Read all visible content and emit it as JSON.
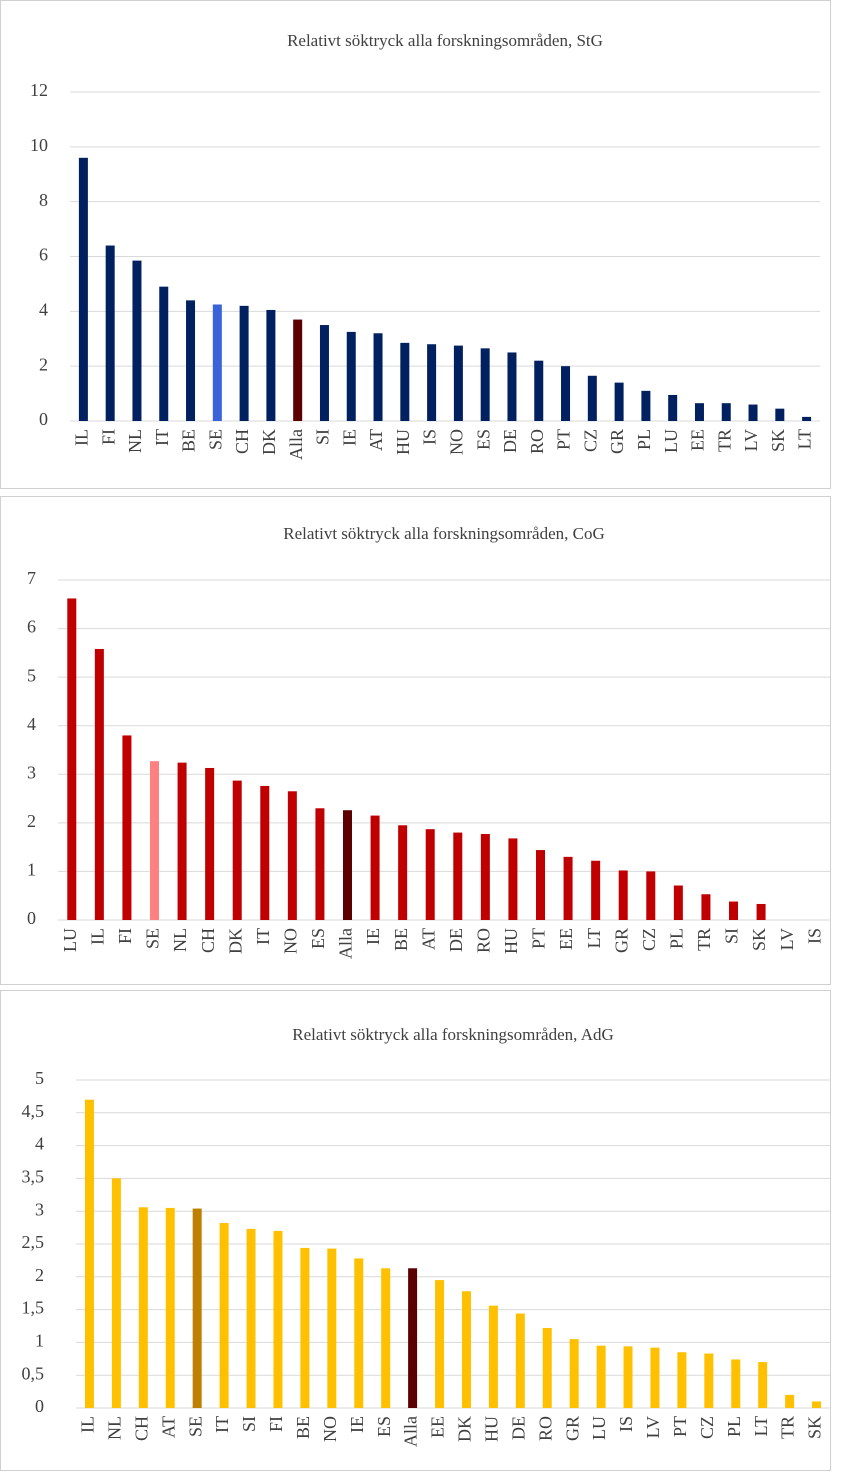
{
  "chart_data": [
    {
      "type": "bar",
      "title": "Relativt söktryck alla forskningsområden, StG",
      "categories": [
        "IL",
        "FI",
        "NL",
        "IT",
        "BE",
        "SE",
        "CH",
        "DK",
        "Alla",
        "SI",
        "IE",
        "AT",
        "HU",
        "IS",
        "NO",
        "ES",
        "DE",
        "RO",
        "PT",
        "CZ",
        "GR",
        "PL",
        "LU",
        "EE",
        "TR",
        "LV",
        "SK",
        "LT"
      ],
      "values": [
        9.6,
        6.4,
        5.85,
        4.9,
        4.4,
        4.25,
        4.2,
        4.05,
        3.7,
        3.5,
        3.25,
        3.2,
        2.85,
        2.8,
        2.75,
        2.65,
        2.5,
        2.2,
        2.0,
        1.65,
        1.4,
        1.1,
        0.95,
        0.65,
        0.65,
        0.6,
        0.45,
        0.15
      ],
      "colors": [
        "#002060",
        "#002060",
        "#002060",
        "#002060",
        "#002060",
        "#3a62d9",
        "#002060",
        "#002060",
        "#5c0000",
        "#002060",
        "#002060",
        "#002060",
        "#002060",
        "#002060",
        "#002060",
        "#002060",
        "#002060",
        "#002060",
        "#002060",
        "#002060",
        "#002060",
        "#002060",
        "#002060",
        "#002060",
        "#002060",
        "#002060",
        "#002060",
        "#002060"
      ],
      "ylim": [
        0,
        12
      ],
      "yticks": [
        0,
        2,
        4,
        6,
        8,
        10,
        12
      ],
      "grid": true
    },
    {
      "type": "bar",
      "title": "Relativt söktryck alla forskningsområden, CoG",
      "categories": [
        "LU",
        "IL",
        "FI",
        "SE",
        "NL",
        "CH",
        "DK",
        "IT",
        "NO",
        "ES",
        "Alla",
        "IE",
        "BE",
        "AT",
        "DE",
        "RO",
        "HU",
        "PT",
        "EE",
        "LT",
        "GR",
        "CZ",
        "PL",
        "TR",
        "SI",
        "SK",
        "LV",
        "IS"
      ],
      "values": [
        6.62,
        5.58,
        3.8,
        3.27,
        3.24,
        3.13,
        2.87,
        2.76,
        2.65,
        2.3,
        2.26,
        2.15,
        1.95,
        1.87,
        1.8,
        1.77,
        1.68,
        1.44,
        1.3,
        1.22,
        1.02,
        1.0,
        0.71,
        0.53,
        0.38,
        0.33,
        0,
        0
      ],
      "colors": [
        "#c00000",
        "#c00000",
        "#c00000",
        "#ff8080",
        "#c00000",
        "#c00000",
        "#c00000",
        "#c00000",
        "#c00000",
        "#c00000",
        "#5c0000",
        "#c00000",
        "#c00000",
        "#c00000",
        "#c00000",
        "#c00000",
        "#c00000",
        "#c00000",
        "#c00000",
        "#c00000",
        "#c00000",
        "#c00000",
        "#c00000",
        "#c00000",
        "#c00000",
        "#c00000",
        "#c00000",
        "#c00000"
      ],
      "ylim": [
        0,
        7
      ],
      "yticks": [
        0,
        1,
        2,
        3,
        4,
        5,
        6,
        7
      ],
      "grid": true
    },
    {
      "type": "bar",
      "title": "Relativt söktryck alla forskningsområden, AdG",
      "categories": [
        "IL",
        "NL",
        "CH",
        "AT",
        "SE",
        "IT",
        "SI",
        "FI",
        "BE",
        "NO",
        "IE",
        "ES",
        "Alla",
        "EE",
        "DK",
        "HU",
        "DE",
        "RO",
        "GR",
        "LU",
        "IS",
        "LV",
        "PT",
        "CZ",
        "PL",
        "LT",
        "TR",
        "SK"
      ],
      "values": [
        4.7,
        3.5,
        3.06,
        3.05,
        3.04,
        2.82,
        2.73,
        2.7,
        2.44,
        2.43,
        2.28,
        2.13,
        2.13,
        1.95,
        1.78,
        1.56,
        1.44,
        1.22,
        1.05,
        0.95,
        0.94,
        0.92,
        0.85,
        0.83,
        0.74,
        0.7,
        0.2,
        0.1
      ],
      "colors": [
        "#ffc000",
        "#ffc000",
        "#ffc000",
        "#ffc000",
        "#bf7f00",
        "#ffc000",
        "#ffc000",
        "#ffc000",
        "#ffc000",
        "#ffc000",
        "#ffc000",
        "#ffc000",
        "#5c0000",
        "#ffc000",
        "#ffc000",
        "#ffc000",
        "#ffc000",
        "#ffc000",
        "#ffc000",
        "#ffc000",
        "#ffc000",
        "#ffc000",
        "#ffc000",
        "#ffc000",
        "#ffc000",
        "#ffc000",
        "#ffc000",
        "#ffc000"
      ],
      "ylim": [
        0,
        5
      ],
      "yticks": [
        0,
        {
          "value": 0.5,
          "label": "0,5"
        },
        1,
        {
          "value": 1.5,
          "label": "1,5"
        },
        2,
        {
          "value": 2.5,
          "label": "2,5"
        },
        3,
        {
          "value": 3.5,
          "label": "3,5"
        },
        4,
        {
          "value": 4.5,
          "label": "4,5"
        },
        5
      ],
      "grid": true
    }
  ]
}
